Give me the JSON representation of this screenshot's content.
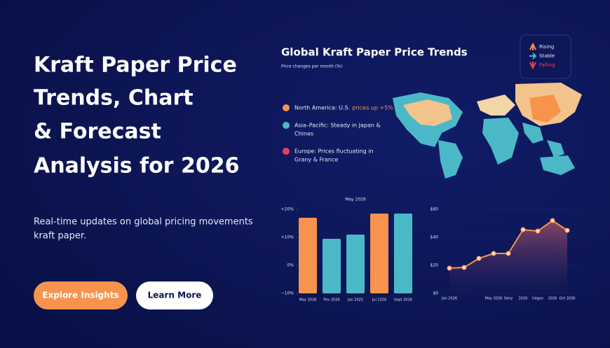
{
  "hero": {
    "title_lines": [
      "Kraft Paper Price",
      "Trends, Chart",
      "& Forecast",
      "Analysis for 2026"
    ],
    "subtitle_lines": [
      "Real-time updates on global pricing movements",
      "kraft paper."
    ],
    "buttons": [
      "Explore Insights",
      "Learn More"
    ]
  },
  "infographic": {
    "title": "Global Kraft Paper Price Trends",
    "subtitle": "Price changes per month (%)",
    "legend": [
      {
        "label": "Rising",
        "color": "#f7934c"
      },
      {
        "label": "Stable",
        "color": "#4bb8c8"
      },
      {
        "label": "Falling",
        "color": "#e8405a"
      }
    ],
    "regions": [
      {
        "lines": [
          "North America: U.S."
        ],
        "highlight": "prices up +5%",
        "color": "#f7934c"
      },
      {
        "lines": [
          "Asia–Pacific:  Steady in Japan &",
          "Chines"
        ],
        "color": "#4bb8c8"
      },
      {
        "lines": [
          "Europe: Prices fluctuating in",
          "Grany & France"
        ],
        "color": "#e8405a"
      }
    ]
  },
  "chart_data": [
    {
      "type": "bar",
      "title": "May 2026",
      "categories": [
        "May 2028",
        "Pov 2026",
        "Jan 2025",
        "Jul 1026",
        "Sept 2026"
      ],
      "values": [
        17,
        9.5,
        11,
        18.5,
        18.5
      ],
      "colors": [
        "#f7934c",
        "#4bb8c8",
        "#4bb8c8",
        "#f7934c",
        "#4bb8c8"
      ],
      "ylim": [
        -10,
        20
      ],
      "yticks": [
        {
          "value": -10,
          "label": "−10%"
        },
        {
          "value": 0,
          "label": "0%"
        },
        {
          "value": 10,
          "label": "+10%"
        },
        {
          "value": 20,
          "label": "+20%"
        }
      ]
    },
    {
      "type": "line",
      "categories": [
        "Jan 2026",
        null,
        null,
        "May 2026",
        "Seny",
        "2026",
        "Uegov",
        "2026",
        "Oct 2026"
      ],
      "values": [
        18,
        18.5,
        25,
        28.5,
        28.5,
        45.5,
        44.5,
        52,
        45
      ],
      "color": "#f7934c",
      "ylim": [
        0,
        60
      ],
      "yticks": [
        {
          "value": 0,
          "label": "$0"
        },
        {
          "value": 20,
          "label": "$20"
        },
        {
          "value": 40,
          "label": "$40"
        },
        {
          "value": 60,
          "label": "$60"
        }
      ]
    }
  ]
}
